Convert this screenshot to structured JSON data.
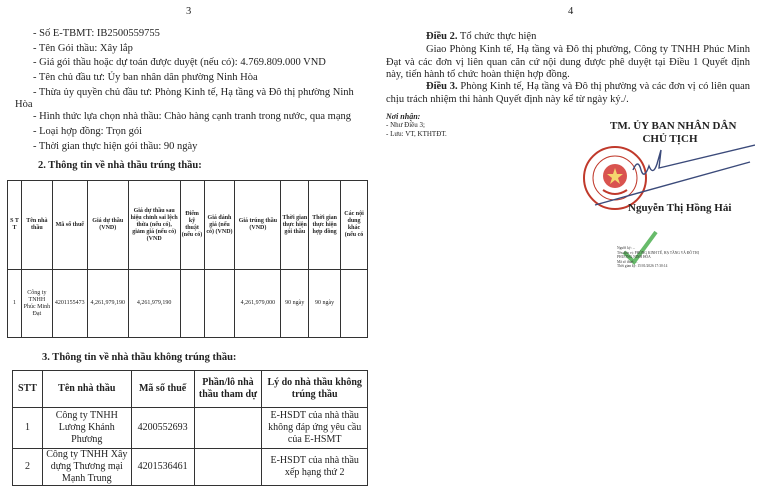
{
  "left_page": {
    "page_number": "3",
    "lines": [
      "- Số E-TBMT: IB2500559755",
      "- Tên Gói thầu: Xây lắp",
      "- Giá gói thầu hoặc dự toán được duyệt (nếu có): 4.769.809.000 VND",
      "- Tên chủ đầu tư: Ủy ban nhân dân phường Ninh Hòa",
      "- Thừa ủy quyền chủ đầu tư: Phòng Kinh tế, Hạ tầng và Đô thị phường Ninh",
      "Hòa",
      "- Hình thức lựa chọn nhà thầu: Chào hàng cạnh tranh trong nước, qua mạng",
      "- Loại hợp đồng: Trọn gói",
      "- Thời gian thực hiện gói thầu: 90 ngày"
    ],
    "section2_title": "2. Thông tin về nhà thầu trúng thầu:",
    "table2": {
      "headers": [
        "S T T",
        "Tên nhà thầu",
        "Mã số thuế",
        "Giá dự thầu (VND)",
        "Giá dự thầu sau hiệu chỉnh sai lệch thừa (nếu có), giảm giá (nếu có) (VND",
        "Điểm kỹ thuật (nếu có)",
        "Giá đánh giá (nếu có) (VND)",
        "Giá trúng thầu (VND)",
        "Thời gian thực hiện gói thầu",
        "Thời gian thực hiện hợp đồng",
        "Các nội dung khác (nếu có"
      ],
      "rows": [
        [
          "1",
          "Công ty TNHH Phúc Minh Đạt",
          "4201155473",
          "4,261,979,190",
          "4,261,979,190",
          "",
          "",
          "4,261,979,000",
          "90 ngày",
          "90 ngày",
          ""
        ]
      ]
    },
    "section3_title": "3. Thông tin về nhà thầu không trúng thầu:",
    "table3": {
      "headers": [
        "STT",
        "Tên nhà thầu",
        "Mã số thuế",
        "Phần/lô nhà thầu tham dự",
        "Lý do nhà thầu không trúng thầu"
      ],
      "rows": [
        [
          "1",
          "Công ty TNHH Lương Khánh Phương",
          "4200552693",
          "",
          "E-HSDT của nhà thầu không đáp ứng yêu cầu của E-HSMT"
        ],
        [
          "2",
          "Công ty TNHH Xây dựng Thương mại Mạnh Trung",
          "4201536461",
          "",
          "E-HSDT của nhà thầu xếp hạng thứ 2"
        ]
      ]
    }
  },
  "right_page": {
    "page_number": "4",
    "dieu2_label": "Điều 2.",
    "dieu2_title": " Tổ chức thực hiện",
    "dieu2_body": "Giao Phòng Kinh tế, Hạ tầng và Đô thị phường, Công ty TNHH Phúc Minh Đạt và các đơn vị liên quan căn cứ nội dung được phê duyệt tại Điều 1 Quyết định này, tiến hành tổ chức hoàn thiện hợp đồng.",
    "dieu3_label": "Điều 3.",
    "dieu3_body": " Phòng Kinh tế, Hạ tầng và Đô thị phường và các đơn vị có liên quan chịu trách nhiệm thi hành Quyết định này kể từ ngày ký./.",
    "recipients_title": "Nơi nhận:",
    "recipients": [
      "- Như Điều 3;",
      "- Lưu: VT, KTHTĐT."
    ],
    "signer_title": "TM. ỦY BAN NHÂN DÂN",
    "signer_role": "CHỦ TỊCH",
    "signer_name": "Nguyễn Thị Hồng Hải",
    "stamp_text": "UBND PHƯỜNG NINH HÒA T. KHÁNH HÒA",
    "stamp_color": "#c0392b",
    "digital_signature": [
      "Người ký: ...",
      "Tên đơn vị: PHÒNG KINH TẾ, HẠ TẦNG VÀ ĐÔ THỊ",
      "PHƯỜNG NINH HÒA",
      "Mã số thuế: ...",
      "Thời gian ký: 15/01/2026 17:30:14"
    ]
  }
}
